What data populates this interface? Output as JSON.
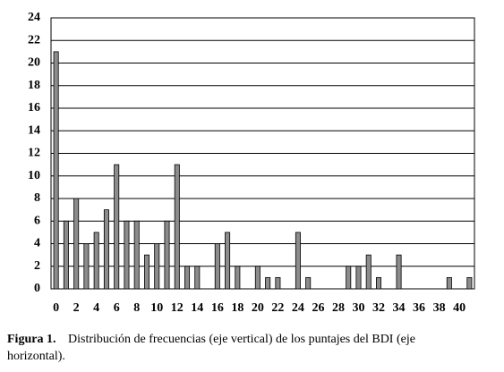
{
  "chart_data": {
    "type": "bar",
    "categories": [
      "0",
      null,
      "2",
      null,
      "4",
      null,
      "6",
      null,
      "8",
      null,
      "10",
      null,
      "12",
      null,
      "14",
      null,
      "16",
      null,
      "18",
      null,
      "20",
      null,
      "22",
      null,
      "24",
      null,
      "26",
      null,
      "28",
      null,
      "30",
      null,
      "32",
      null,
      "34",
      null,
      "36",
      null,
      "38",
      null,
      "40",
      null
    ],
    "values": [
      21,
      6,
      8,
      4,
      5,
      7,
      11,
      6,
      6,
      3,
      4,
      6,
      11,
      2,
      2,
      0,
      4,
      5,
      2,
      0,
      2,
      1,
      1,
      0,
      5,
      1,
      0,
      0,
      0,
      2,
      2,
      3,
      1,
      0,
      3,
      0,
      0,
      0,
      0,
      1,
      0,
      1
    ],
    "color": "#8c8c8c",
    "ylim": [
      0,
      24
    ],
    "yticks": [
      0,
      2,
      4,
      6,
      8,
      10,
      12,
      14,
      16,
      18,
      20,
      22,
      24
    ],
    "grid": true
  },
  "caption": {
    "label": "Figura 1.",
    "text": "Distribución de frecuencias (eje vertical) de los puntajes del BDI (eje",
    "text_cont": "horizontal)."
  }
}
